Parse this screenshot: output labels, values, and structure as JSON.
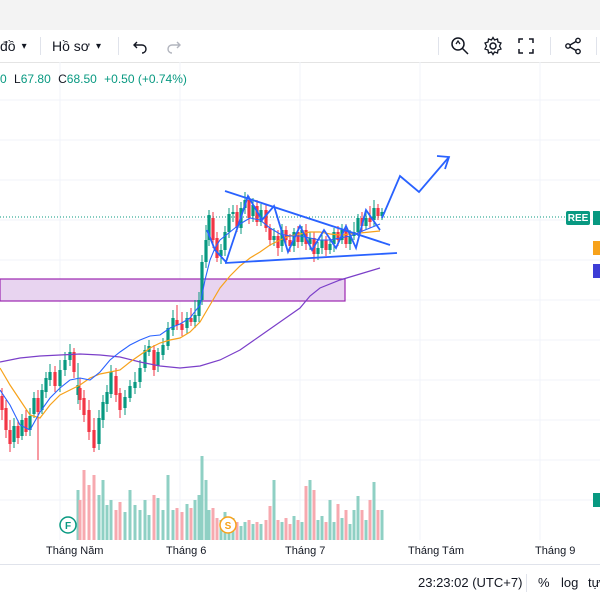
{
  "toolbar": {
    "interval_label": "đồ",
    "template_label": "Hồ sơ"
  },
  "legend": {
    "partial_open": "0",
    "low_key": "L",
    "low_value": "67.80",
    "close_key": "C",
    "close_value": "68.50",
    "change": "+0.50 (+0.74%)"
  },
  "symbol_badge": "REE",
  "time_axis": [
    "Tháng Năm",
    "Tháng 6",
    "Tháng 7",
    "Tháng Tám",
    "Tháng 9"
  ],
  "event_markers": [
    "F",
    "S"
  ],
  "bottom_bar": {
    "clock": "23:23:02 (UTC+7)",
    "percent_label": "%",
    "log_label": "log",
    "auto_label": "tự"
  },
  "colors": {
    "up": "#089981",
    "down": "#f23645",
    "ma_fast": "#2962ff",
    "ma_mid": "#f7a21b",
    "ma_slow": "#7b3fc9",
    "zone_fill": "#e8d4f0",
    "zone_border": "#9c27b0",
    "pattern": "#2962ff"
  },
  "chart_data": {
    "type": "candlestick",
    "candles": [
      [
        78,
        395,
        385,
        363,
        404
      ],
      [
        80,
        388,
        400,
        378,
        410
      ],
      [
        84,
        398,
        415,
        390,
        422
      ],
      [
        89,
        410,
        432,
        400,
        440
      ],
      [
        94,
        430,
        448,
        418,
        452
      ],
      [
        99,
        444,
        418,
        410,
        450
      ],
      [
        103,
        420,
        402,
        395,
        428
      ],
      [
        107,
        404,
        392,
        385,
        412
      ],
      [
        111,
        394,
        372,
        365,
        398
      ],
      [
        116,
        376,
        395,
        368,
        402
      ],
      [
        120,
        393,
        410,
        388,
        418
      ],
      [
        125,
        408,
        397,
        390,
        415
      ],
      [
        130,
        398,
        386,
        380,
        402
      ],
      [
        135,
        388,
        382,
        372,
        394
      ],
      [
        140,
        382,
        368,
        360,
        388
      ],
      [
        145,
        368,
        350,
        345,
        372
      ],
      [
        149,
        352,
        346,
        340,
        356
      ],
      [
        154,
        350,
        370,
        345,
        376
      ],
      [
        158,
        366,
        352,
        348,
        372
      ],
      [
        163,
        355,
        345,
        338,
        360
      ],
      [
        168,
        346,
        328,
        322,
        350
      ],
      [
        173,
        330,
        318,
        310,
        336
      ],
      [
        177,
        320,
        325,
        305,
        330
      ],
      [
        182,
        324,
        330,
        312,
        336
      ],
      [
        187,
        328,
        318,
        312,
        334
      ],
      [
        191,
        318,
        322,
        308,
        326
      ],
      [
        195,
        322,
        315,
        300,
        328
      ],
      [
        199,
        316,
        300,
        292,
        322
      ],
      [
        202,
        300,
        262,
        255,
        305
      ],
      [
        206,
        262,
        240,
        225,
        268
      ],
      [
        209,
        240,
        215,
        210,
        246
      ],
      [
        213,
        218,
        240,
        212,
        248
      ],
      [
        217,
        238,
        258,
        232,
        262
      ],
      [
        221,
        256,
        250,
        244,
        264
      ],
      [
        225,
        250,
        232,
        226,
        256
      ],
      [
        229,
        232,
        214,
        208,
        238
      ],
      [
        233,
        214,
        212,
        205,
        222
      ],
      [
        237,
        212,
        228,
        205,
        232
      ],
      [
        241,
        228,
        208,
        202,
        234
      ],
      [
        245,
        208,
        200,
        192,
        214
      ],
      [
        249,
        200,
        218,
        196,
        224
      ],
      [
        253,
        216,
        205,
        198,
        222
      ],
      [
        257,
        206,
        222,
        200,
        226
      ],
      [
        261,
        222,
        210,
        204,
        226
      ],
      [
        266,
        210,
        228,
        205,
        232
      ],
      [
        270,
        228,
        240,
        224,
        246
      ],
      [
        274,
        240,
        236,
        228,
        246
      ],
      [
        278,
        236,
        248,
        230,
        256
      ],
      [
        282,
        246,
        230,
        224,
        252
      ],
      [
        286,
        230,
        240,
        226,
        246
      ],
      [
        290,
        240,
        246,
        234,
        252
      ],
      [
        294,
        246,
        232,
        228,
        252
      ],
      [
        298,
        232,
        242,
        226,
        248
      ],
      [
        302,
        242,
        230,
        226,
        246
      ],
      [
        306,
        230,
        244,
        224,
        250
      ],
      [
        310,
        244,
        238,
        232,
        250
      ],
      [
        314,
        238,
        254,
        232,
        262
      ],
      [
        318,
        254,
        248,
        242,
        260
      ],
      [
        322,
        248,
        240,
        234,
        254
      ],
      [
        326,
        240,
        250,
        236,
        256
      ],
      [
        330,
        250,
        244,
        238,
        254
      ],
      [
        334,
        244,
        232,
        228,
        252
      ],
      [
        338,
        232,
        240,
        226,
        246
      ],
      [
        342,
        240,
        230,
        224,
        244
      ],
      [
        346,
        230,
        244,
        224,
        248
      ],
      [
        350,
        244,
        236,
        230,
        250
      ],
      [
        354,
        236,
        232,
        222,
        240
      ],
      [
        358,
        232,
        218,
        214,
        236
      ],
      [
        362,
        218,
        226,
        212,
        232
      ],
      [
        366,
        226,
        218,
        210,
        230
      ],
      [
        370,
        218,
        222,
        206,
        228
      ],
      [
        374,
        220,
        208,
        200,
        226
      ],
      [
        378,
        208,
        216,
        204,
        220
      ],
      [
        382,
        216,
        212,
        208,
        220
      ]
    ],
    "volumes": [
      [
        78,
        50
      ],
      [
        80,
        40
      ],
      [
        84,
        70
      ],
      [
        89,
        55
      ],
      [
        94,
        65
      ],
      [
        99,
        45
      ],
      [
        103,
        60
      ],
      [
        107,
        35
      ],
      [
        111,
        40
      ],
      [
        116,
        30
      ],
      [
        120,
        38
      ],
      [
        125,
        28
      ],
      [
        130,
        50
      ],
      [
        135,
        35
      ],
      [
        140,
        30
      ],
      [
        145,
        40
      ],
      [
        149,
        25
      ],
      [
        154,
        45
      ],
      [
        158,
        42
      ],
      [
        163,
        30
      ],
      [
        168,
        65
      ],
      [
        173,
        30
      ],
      [
        177,
        32
      ],
      [
        182,
        28
      ],
      [
        187,
        36
      ],
      [
        191,
        32
      ],
      [
        195,
        40
      ],
      [
        199,
        45
      ],
      [
        202,
        84
      ],
      [
        206,
        60
      ],
      [
        209,
        30
      ],
      [
        213,
        32
      ],
      [
        217,
        22
      ],
      [
        221,
        20
      ],
      [
        225,
        28
      ],
      [
        229,
        18
      ],
      [
        233,
        22
      ],
      [
        237,
        18
      ],
      [
        241,
        14
      ],
      [
        245,
        18
      ],
      [
        249,
        20
      ],
      [
        253,
        16
      ],
      [
        257,
        18
      ],
      [
        261,
        16
      ],
      [
        266,
        20
      ],
      [
        270,
        34
      ],
      [
        274,
        60
      ],
      [
        278,
        20
      ],
      [
        282,
        18
      ],
      [
        286,
        22
      ],
      [
        290,
        16
      ],
      [
        294,
        24
      ],
      [
        298,
        20
      ],
      [
        302,
        18
      ],
      [
        306,
        54
      ],
      [
        310,
        60
      ],
      [
        314,
        50
      ],
      [
        318,
        20
      ],
      [
        322,
        24
      ],
      [
        326,
        18
      ],
      [
        330,
        40
      ],
      [
        334,
        18
      ],
      [
        338,
        36
      ],
      [
        342,
        22
      ],
      [
        346,
        30
      ],
      [
        350,
        16
      ],
      [
        354,
        30
      ],
      [
        358,
        44
      ],
      [
        362,
        30
      ],
      [
        366,
        20
      ],
      [
        370,
        40
      ],
      [
        374,
        58
      ],
      [
        378,
        30
      ],
      [
        382,
        30
      ]
    ],
    "x_labels": [
      "Tháng Năm",
      "Tháng 6",
      "Tháng 7",
      "Tháng Tám",
      "Tháng 9"
    ],
    "last_close": 68.5,
    "change": 0.5,
    "change_pct": 0.74,
    "low": 67.8,
    "grid": true
  }
}
